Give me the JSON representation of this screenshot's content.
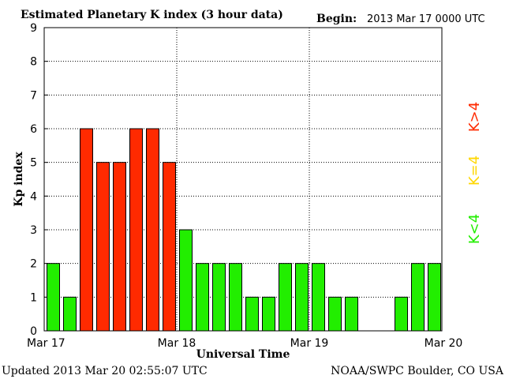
{
  "header": {
    "title": "Estimated Planetary K index (3 hour data)",
    "begin_label": "Begin:",
    "begin_value": "2013 Mar 17 0000 UTC"
  },
  "footer": {
    "updated": "Updated 2013 Mar 20 02:55:07 UTC",
    "source": "NOAA/SWPC Boulder, CO USA"
  },
  "legend": [
    {
      "label": "K>4",
      "color": "#ff2a00"
    },
    {
      "label": "K=4",
      "color": "#ffd700"
    },
    {
      "label": "K<4",
      "color": "#22ee00"
    }
  ],
  "colors": {
    "high": "#ff2a00",
    "equal": "#ffd700",
    "low": "#22ee00"
  },
  "chart_data": {
    "type": "bar",
    "title": "Estimated Planetary K index (3 hour data)",
    "xlabel": "Universal Time",
    "ylabel": "Kp index",
    "ylim": [
      0,
      9
    ],
    "yticks": [
      0,
      1,
      2,
      3,
      4,
      5,
      6,
      7,
      8,
      9
    ],
    "xticks": [
      "Mar 17",
      "Mar 18",
      "Mar 19",
      "Mar 20"
    ],
    "grid": true,
    "categories": [
      "Mar 17 00",
      "Mar 17 03",
      "Mar 17 06",
      "Mar 17 09",
      "Mar 17 12",
      "Mar 17 15",
      "Mar 17 18",
      "Mar 17 21",
      "Mar 18 00",
      "Mar 18 03",
      "Mar 18 06",
      "Mar 18 09",
      "Mar 18 12",
      "Mar 18 15",
      "Mar 18 18",
      "Mar 18 21",
      "Mar 19 00",
      "Mar 19 03",
      "Mar 19 06",
      "Mar 19 09",
      "Mar 19 12",
      "Mar 19 15",
      "Mar 19 18",
      "Mar 19 21"
    ],
    "values": [
      2,
      1,
      6,
      5,
      5,
      6,
      6,
      5,
      3,
      2,
      2,
      2,
      1,
      1,
      2,
      2,
      2,
      1,
      1,
      null,
      null,
      1,
      2,
      2
    ]
  }
}
